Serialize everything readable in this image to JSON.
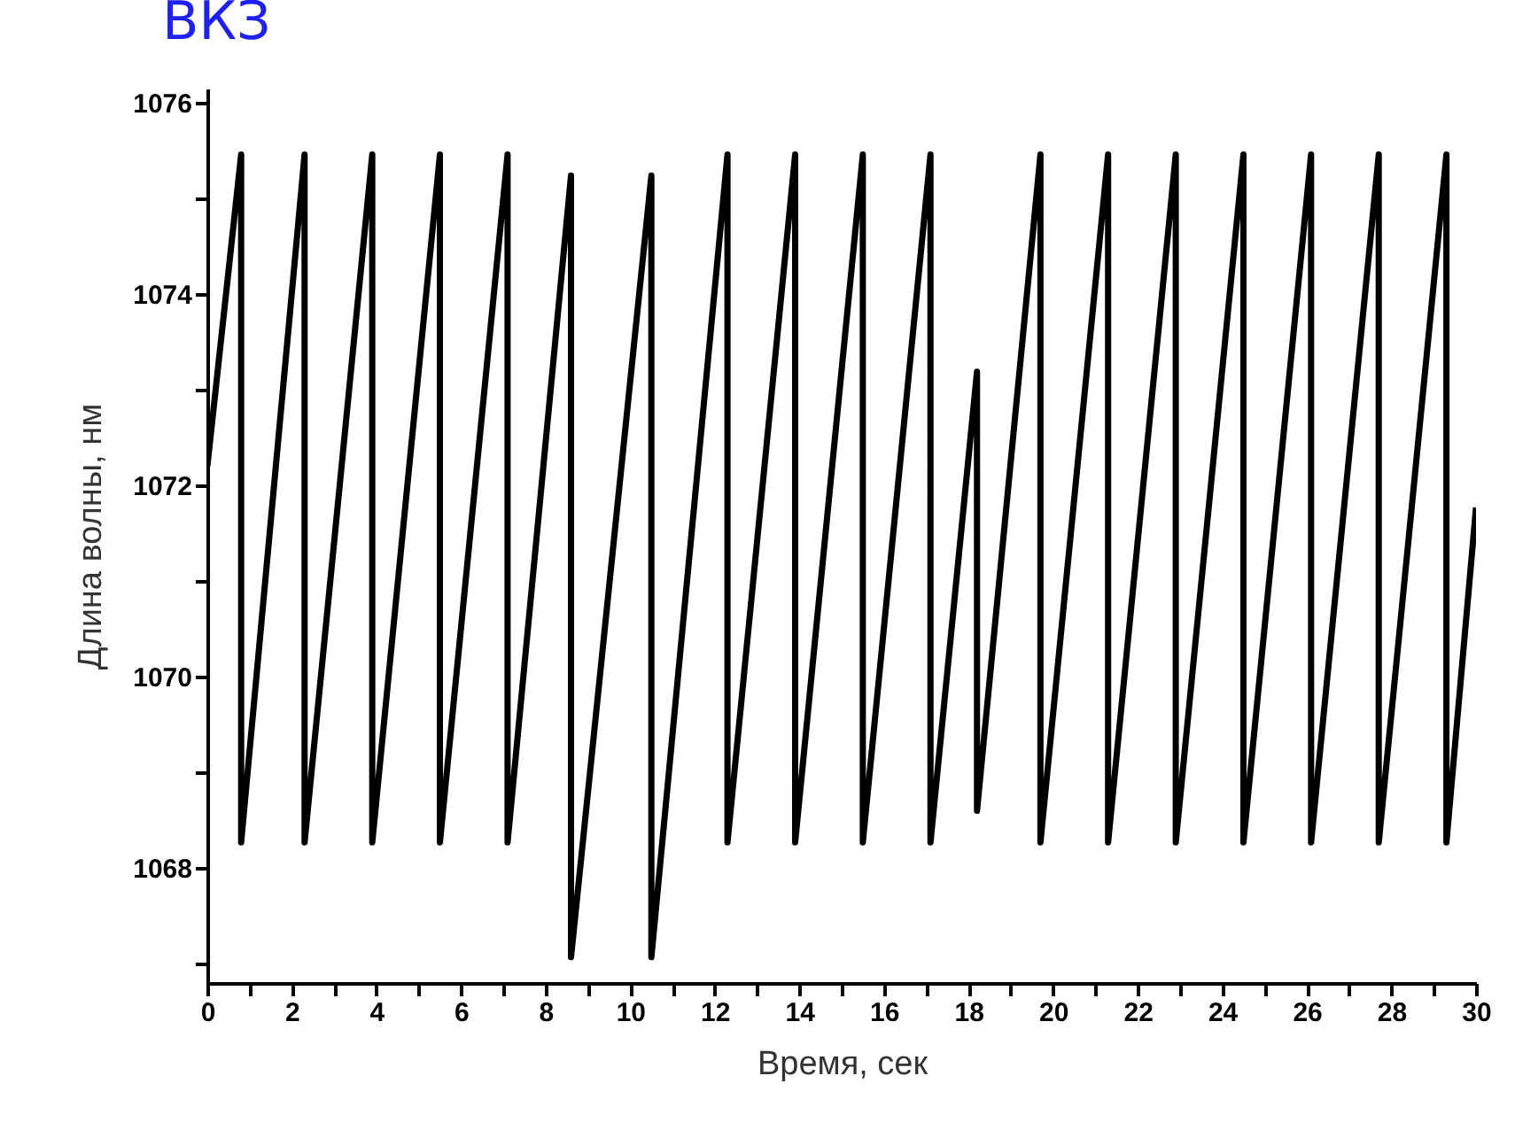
{
  "chart_data": {
    "type": "line",
    "title": "ВКЗ",
    "xlabel": "Время, сек",
    "ylabel": "Длина волны, нм",
    "xlim": [
      0,
      30
    ],
    "ylim": [
      1066.8,
      1076.15
    ],
    "xticks": [
      0,
      {
        "value": 1,
        "label": null
      },
      2,
      {
        "value": 3,
        "label": null
      },
      4,
      {
        "value": 5,
        "label": null
      },
      6,
      {
        "value": 7,
        "label": null
      },
      8,
      {
        "value": 9,
        "label": null
      },
      10,
      {
        "value": 11,
        "label": null
      },
      12,
      {
        "value": 13,
        "label": null
      },
      14,
      {
        "value": 15,
        "label": null
      },
      16,
      {
        "value": 17,
        "label": null
      },
      18,
      {
        "value": 19,
        "label": null
      },
      20,
      {
        "value": 21,
        "label": null
      },
      22,
      {
        "value": 23,
        "label": null
      },
      24,
      {
        "value": 25,
        "label": null
      },
      26,
      {
        "value": 27,
        "label": null
      },
      28,
      {
        "value": 29,
        "label": null
      },
      30
    ],
    "yticks": [
      {
        "value": 1067,
        "label": null
      },
      1068,
      {
        "value": 1069,
        "label": null
      },
      1070,
      {
        "value": 1071,
        "label": null
      },
      1072,
      {
        "value": 1073,
        "label": null
      },
      1074,
      {
        "value": 1075,
        "label": null
      },
      1076
    ],
    "grid": false,
    "marker": "none",
    "series": [
      {
        "color": "#000000",
        "x": [
          0,
          0.8,
          0.8,
          2.3,
          2.3,
          3.9,
          3.9,
          5.5,
          5.5,
          7.1,
          7.1,
          8.6,
          8.6,
          10.5,
          10.5,
          12.3,
          12.3,
          13.9,
          13.9,
          15.5,
          15.5,
          17.1,
          17.1,
          18.2,
          18.2,
          19.7,
          19.7,
          21.3,
          21.3,
          22.9,
          22.9,
          24.5,
          24.5,
          26.1,
          26.1,
          27.7,
          27.7,
          29.3,
          29.3,
          30
        ],
        "values": [
          1072.2,
          1075.46,
          1068.27,
          1075.46,
          1068.27,
          1075.46,
          1068.27,
          1075.46,
          1068.27,
          1075.46,
          1068.27,
          1075.24,
          1067.07,
          1075.24,
          1067.07,
          1075.46,
          1068.27,
          1075.46,
          1068.27,
          1075.46,
          1068.27,
          1075.46,
          1068.27,
          1073.19,
          1068.6,
          1075.46,
          1068.27,
          1075.46,
          1068.27,
          1075.46,
          1068.27,
          1075.46,
          1068.27,
          1075.46,
          1068.27,
          1075.46,
          1068.27,
          1075.46,
          1068.27,
          1071.77
        ]
      }
    ]
  }
}
